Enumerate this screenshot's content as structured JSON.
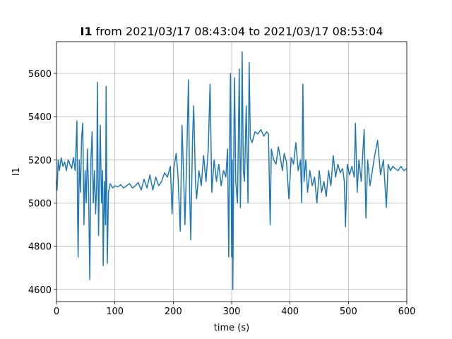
{
  "chart_data": {
    "type": "line",
    "title": {
      "bold": "I1",
      "rest": "from 2021/03/17 08:43:04 to 2021/03/17 08:53:04"
    },
    "xlabel": "time (s)",
    "ylabel": "I1",
    "x": [
      0,
      1,
      3,
      5,
      8,
      11,
      14,
      17,
      20,
      23,
      26,
      29,
      32,
      35,
      36,
      37,
      39,
      41,
      43,
      45,
      47,
      49,
      51,
      53,
      55,
      57,
      59,
      61,
      63,
      65,
      67,
      69,
      70,
      72,
      74,
      75,
      77,
      79,
      80,
      82,
      84,
      85,
      87,
      89,
      92,
      96,
      100,
      105,
      110,
      115,
      120,
      125,
      130,
      135,
      140,
      145,
      150,
      155,
      160,
      165,
      170,
      175,
      180,
      185,
      190,
      195,
      198,
      201,
      205,
      208,
      212,
      215,
      218,
      220,
      223,
      226,
      228,
      230,
      233,
      235,
      238,
      240,
      244,
      248,
      252,
      256,
      260,
      263,
      266,
      270,
      274,
      278,
      282,
      286,
      290,
      293,
      295,
      297,
      298,
      300,
      301,
      302,
      304,
      305,
      307,
      310,
      312,
      313,
      315,
      317,
      318,
      320,
      322,
      325,
      328,
      330,
      332,
      335,
      340,
      345,
      350,
      355,
      360,
      363,
      366,
      368,
      372,
      376,
      380,
      384,
      387,
      390,
      394,
      398,
      402,
      406,
      410,
      414,
      418,
      420,
      422,
      424,
      427,
      430,
      434,
      438,
      442,
      446,
      450,
      454,
      458,
      462,
      466,
      470,
      474,
      478,
      482,
      486,
      490,
      493,
      495,
      498,
      502,
      506,
      510,
      512,
      515,
      518,
      522,
      525,
      527,
      530,
      533,
      537,
      541,
      545,
      550,
      555,
      560,
      565,
      568,
      572,
      576,
      580,
      585,
      590,
      595,
      600
    ],
    "series": [
      {
        "name": "I1",
        "color": "#1f77b4",
        "values": [
          5100,
          5060,
          5200,
          5150,
          5210,
          5170,
          5190,
          5150,
          5200,
          5180,
          5160,
          5210,
          5150,
          5380,
          5000,
          4750,
          5200,
          5050,
          5300,
          5370,
          4900,
          5150,
          5000,
          5250,
          5050,
          4645,
          5200,
          5330,
          5000,
          5150,
          4950,
          5100,
          5560,
          4850,
          5200,
          5360,
          5000,
          5150,
          4710,
          5100,
          4900,
          5540,
          4720,
          5050,
          5090,
          5070,
          5080,
          5075,
          5085,
          5070,
          5080,
          5090,
          5070,
          5080,
          5095,
          5060,
          5110,
          5070,
          5130,
          5060,
          5120,
          5080,
          5100,
          5140,
          5120,
          5170,
          4950,
          5160,
          5230,
          5130,
          4870,
          5360,
          5100,
          4900,
          5200,
          5570,
          5050,
          4830,
          5300,
          5450,
          5100,
          5020,
          5150,
          5080,
          5220,
          5100,
          5250,
          5550,
          5050,
          5200,
          5100,
          5180,
          5080,
          5150,
          5120,
          5250,
          4750,
          5400,
          5600,
          4750,
          5200,
          4600,
          5350,
          5580,
          5100,
          5000,
          5400,
          5620,
          4980,
          5350,
          5700,
          5150,
          5100,
          5450,
          5000,
          5650,
          5300,
          5280,
          5330,
          5320,
          5340,
          5310,
          5330,
          5320,
          4900,
          5250,
          5200,
          5180,
          5260,
          5200,
          5150,
          5230,
          5190,
          5020,
          5210,
          5180,
          5280,
          5150,
          5200,
          5000,
          5550,
          5100,
          5200,
          5050,
          5150,
          5080,
          5120,
          5000,
          5150,
          5050,
          5100,
          5030,
          5150,
          5080,
          5220,
          5120,
          5180,
          5140,
          5160,
          5100,
          4890,
          5180,
          5130,
          5170,
          5120,
          5370,
          5050,
          5200,
          5100,
          5250,
          5340,
          4930,
          5200,
          5080,
          5150,
          5220,
          5290,
          5130,
          5200,
          4980,
          5180,
          5150,
          5170,
          5160,
          5150,
          5170,
          5150,
          5160
        ]
      }
    ],
    "xlim": [
      0,
      600
    ],
    "xticks": [
      0,
      100,
      200,
      300,
      400,
      500,
      600
    ],
    "ylim": [
      4544,
      5747
    ],
    "yticks": [
      4600,
      4800,
      5000,
      5200,
      5400,
      5600
    ],
    "grid": true
  }
}
